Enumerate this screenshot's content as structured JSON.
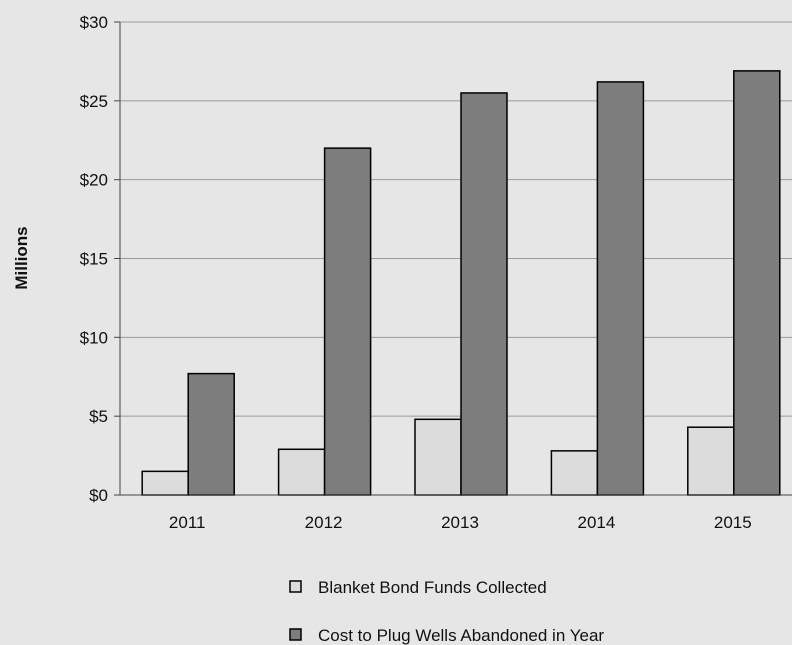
{
  "chart_data": {
    "type": "bar",
    "title": "",
    "xlabel": "",
    "ylabel": "Millions",
    "categories": [
      "2011",
      "2012",
      "2013",
      "2014",
      "2015"
    ],
    "series": [
      {
        "name": "Blanket Bond Funds Collected",
        "values": [
          1.5,
          2.9,
          4.8,
          2.8,
          4.3
        ],
        "color": "#dcdcdc"
      },
      {
        "name": "Cost to Plug Wells Abandoned in Year",
        "values": [
          7.7,
          22.0,
          25.5,
          26.2,
          26.9
        ],
        "color": "#7d7d7d"
      }
    ],
    "ylim": [
      0,
      30
    ],
    "yticks": [
      0,
      5,
      10,
      15,
      20,
      25,
      30
    ],
    "ytick_labels": [
      "$0",
      "$5",
      "$10",
      "$15",
      "$20",
      "$25",
      "$30"
    ],
    "grid": true,
    "legend_position": "bottom"
  }
}
